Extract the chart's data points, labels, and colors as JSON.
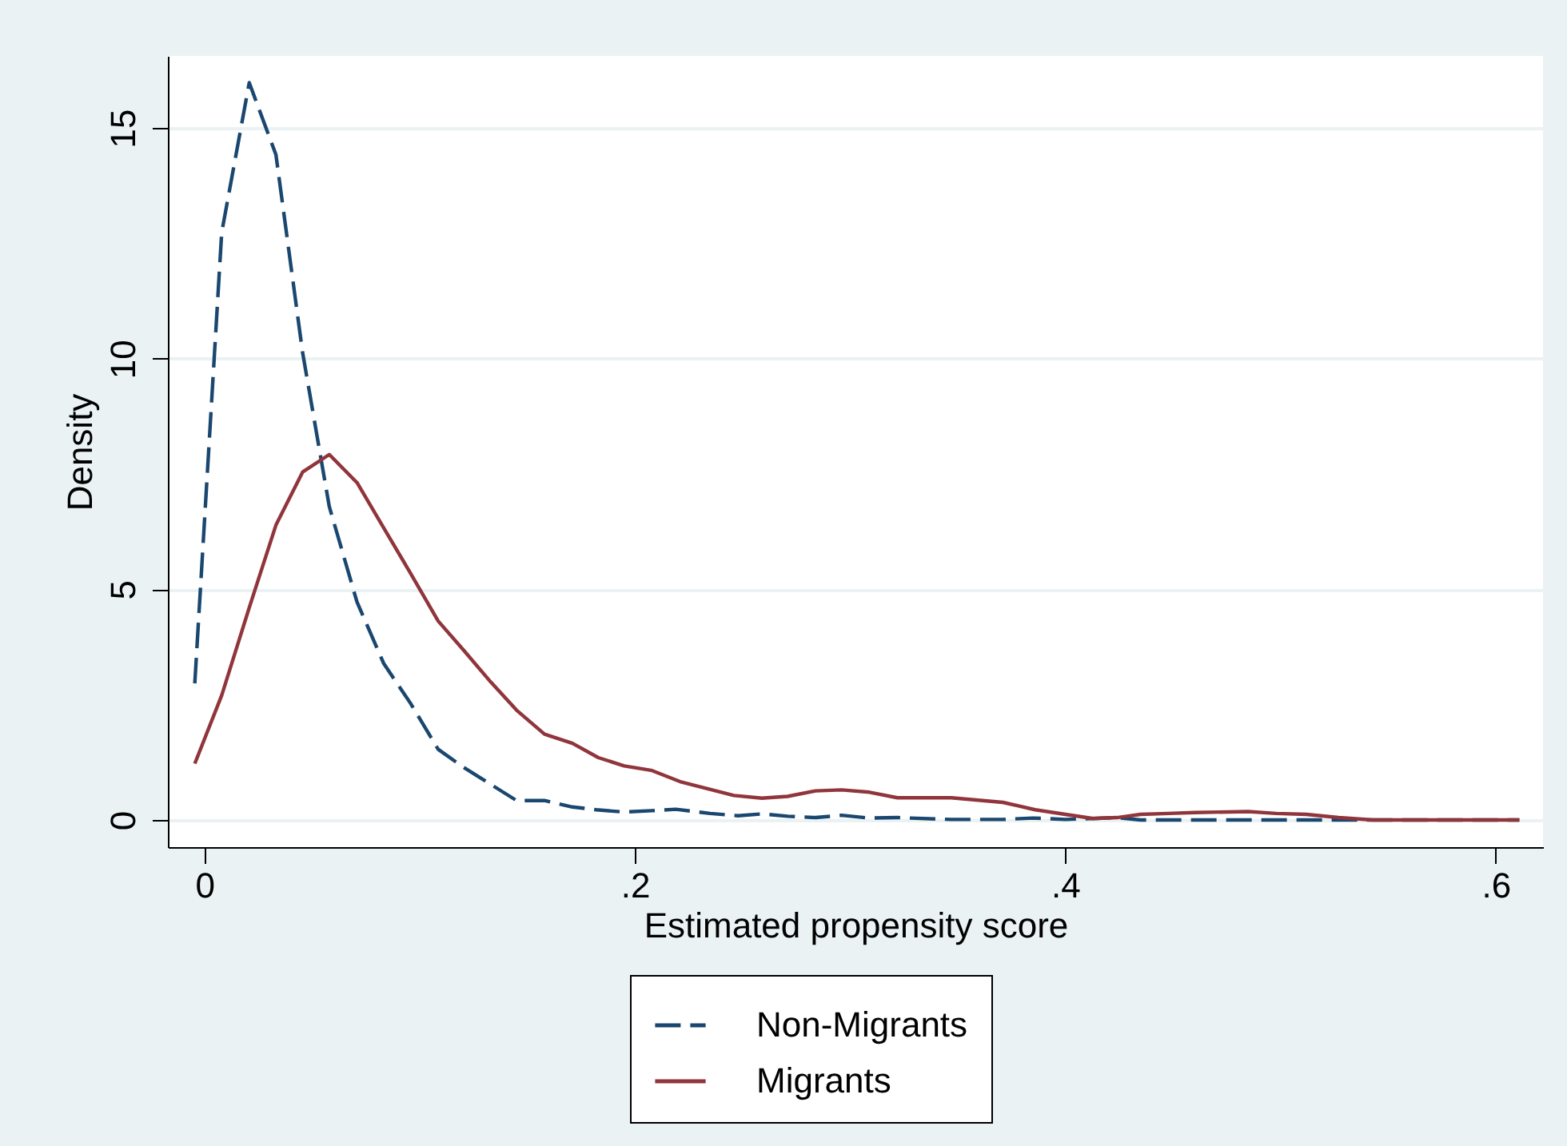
{
  "chart_data": {
    "type": "line",
    "xlabel": "Estimated propensity score",
    "ylabel": "Density",
    "xlim": [
      -0.017,
      0.622
    ],
    "ylim": [
      -0.59,
      16.56
    ],
    "xticks": [
      0,
      {
        "value": 0.2,
        "label": ".2"
      },
      {
        "value": 0.4,
        "label": ".4"
      },
      {
        "value": 0.6,
        "label": ".6"
      }
    ],
    "yticks": [
      0,
      5,
      10,
      15
    ],
    "grid": "y",
    "legend": "bottom",
    "marker": "none",
    "series": [
      {
        "name": "Non-Migrants",
        "color": "#1a476f",
        "line_style": "dashed",
        "x": [
          -0.0045,
          0.008,
          0.0208,
          0.0332,
          0.0456,
          0.058,
          0.0709,
          0.0833,
          0.0957,
          0.1086,
          0.1204,
          0.145,
          0.158,
          0.171,
          0.182,
          0.195,
          0.208,
          0.219,
          0.235,
          0.248,
          0.259,
          0.271,
          0.284,
          0.296,
          0.309,
          0.322,
          0.347,
          0.371,
          0.385,
          0.4,
          0.424,
          0.435,
          0.543,
          0.611
        ],
        "values": [
          2.96,
          12.73,
          15.98,
          14.42,
          10.13,
          6.79,
          4.72,
          3.39,
          2.53,
          1.53,
          1.14,
          0.42,
          0.42,
          0.28,
          0.22,
          0.17,
          0.2,
          0.23,
          0.14,
          0.09,
          0.13,
          0.08,
          0.05,
          0.1,
          0.04,
          0.05,
          0.01,
          0.01,
          0.04,
          0.01,
          0.05,
          0,
          0,
          0
        ]
      },
      {
        "name": "Migrants",
        "color": "#90353b",
        "line_style": "solid",
        "x": [
          -0.0045,
          0.008,
          0.0208,
          0.0332,
          0.0456,
          0.058,
          0.0709,
          0.0833,
          0.0957,
          0.1086,
          0.1204,
          0.133,
          0.145,
          0.158,
          0.171,
          0.183,
          0.195,
          0.208,
          0.221,
          0.246,
          0.259,
          0.271,
          0.284,
          0.296,
          0.309,
          0.322,
          0.347,
          0.371,
          0.386,
          0.4,
          0.413,
          0.424,
          0.435,
          0.448,
          0.46,
          0.485,
          0.498,
          0.512,
          0.527,
          0.543,
          0.611
        ],
        "values": [
          1.22,
          2.7,
          4.6,
          6.39,
          7.54,
          7.92,
          7.31,
          6.33,
          5.35,
          4.31,
          3.68,
          2.99,
          2.38,
          1.86,
          1.66,
          1.35,
          1.17,
          1.07,
          0.83,
          0.53,
          0.47,
          0.51,
          0.63,
          0.65,
          0.6,
          0.48,
          0.48,
          0.38,
          0.22,
          0.12,
          0.03,
          0.05,
          0.12,
          0.14,
          0.16,
          0.18,
          0.14,
          0.12,
          0.05,
          0,
          0
        ]
      }
    ]
  }
}
